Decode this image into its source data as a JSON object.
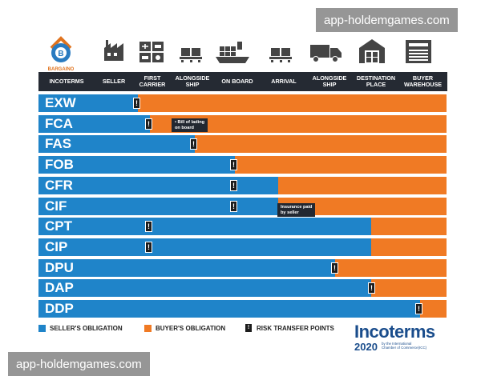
{
  "logo": {
    "text": "BARGAINO"
  },
  "icons": [
    "factory-icon",
    "first-carrier-icon",
    "pallet-icon",
    "cargo-ship-icon",
    "pallet-icon",
    "delivery-truck-icon",
    "destination-warehouse-icon",
    "buyer-warehouse-icon"
  ],
  "header": {
    "columns": [
      "INCOTERMS",
      "SELLER",
      "FIRST\nCARRIER",
      "ALONGSIDE\nSHIP",
      "ON BOARD",
      "ARRIVAL",
      "ALONGSIDE\nSHIP",
      "DESTINATION\nPLACE",
      "BUYER\nWAREHOUSE"
    ]
  },
  "rows": [
    {
      "term": "EXW",
      "seller_to_col": 1,
      "risk_col": 1
    },
    {
      "term": "FCA",
      "seller_to_col": 2,
      "risk_col": 2
    },
    {
      "term": "FAS",
      "seller_to_col": 3,
      "risk_col": 3
    },
    {
      "term": "FOB",
      "seller_to_col": 4,
      "risk_col": 4
    },
    {
      "term": "CFR",
      "seller_to_col": 5,
      "risk_col": 4
    },
    {
      "term": "CIF",
      "seller_to_col": 5,
      "risk_col": 4
    },
    {
      "term": "CPT",
      "seller_to_col": 7,
      "risk_col": 2
    },
    {
      "term": "CIP",
      "seller_to_col": 7,
      "risk_col": 2
    },
    {
      "term": "DPU",
      "seller_to_col": 6,
      "risk_col": 6
    },
    {
      "term": "DAP",
      "seller_to_col": 7,
      "risk_col": 7
    },
    {
      "term": "DDP",
      "seller_to_col": 8,
      "risk_col": 8
    }
  ],
  "risk_glyph": "!",
  "notes": {
    "fca": "• Bill of lading\non board",
    "cif": "Insurance paid\nby seller"
  },
  "legend": {
    "seller": "SELLER'S OBLIGATION",
    "buyer": "BUYER'S OBLIGATION",
    "risk": "RISK TRANSFER POINTS"
  },
  "brand": {
    "name": "Incoterms",
    "year": "2020",
    "sub": "by the International\nChamber of Commerce(ICC)"
  },
  "watermark": "app-holdemgames.com",
  "colors": {
    "seller": "#1f84c9",
    "buyer": "#f07a24",
    "header": "#252a33"
  }
}
